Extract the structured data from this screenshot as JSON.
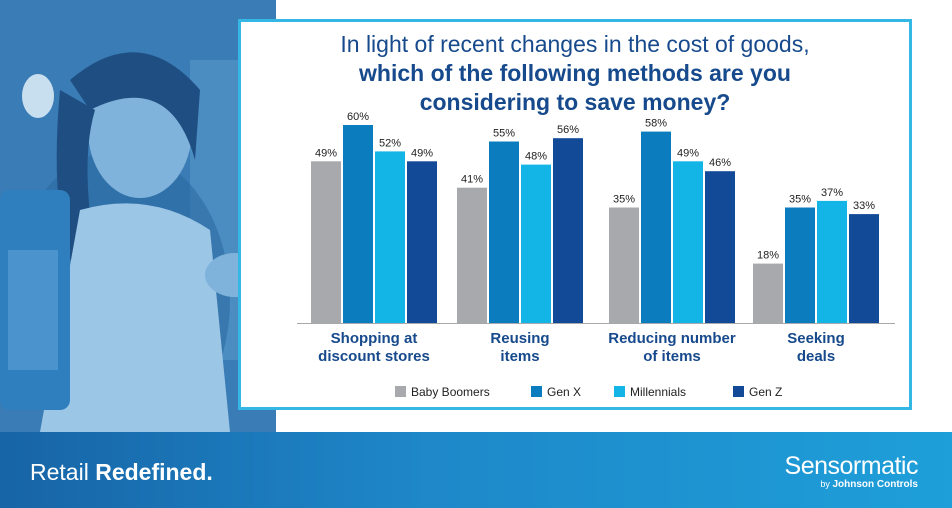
{
  "title": {
    "line1": "In light of recent changes in the cost of goods,",
    "line2": "which of the following methods are you",
    "line3": "considering to save money?"
  },
  "footer": {
    "tagline_regular": "Retail ",
    "tagline_bold": "Redefined.",
    "logo_main": "Sensormatic",
    "logo_by": "by ",
    "logo_company": "Johnson Controls"
  },
  "colors": {
    "title": "#174a8c",
    "frame": "#35b7e6",
    "footer": "#1e88c9"
  },
  "chart_data": {
    "type": "bar",
    "title": "In light of recent changes in the cost of goods, which of the following methods are you considering to save money?",
    "categories": [
      [
        "Shopping at",
        "discount stores"
      ],
      [
        "Reusing",
        "items"
      ],
      [
        "Reducing number",
        "of items"
      ],
      [
        "Seeking",
        "deals"
      ]
    ],
    "series": [
      {
        "name": "Baby Boomers",
        "color": "#a7a9ac",
        "values": [
          49,
          41,
          35,
          18
        ]
      },
      {
        "name": "Gen X",
        "color": "#0b7dbf",
        "values": [
          60,
          55,
          58,
          35
        ]
      },
      {
        "name": "Millennials",
        "color": "#12b5e6",
        "values": [
          52,
          48,
          49,
          37
        ]
      },
      {
        "name": "Gen Z",
        "color": "#124a98",
        "values": [
          49,
          56,
          46,
          33
        ]
      }
    ],
    "value_suffix": "%",
    "ylim": [
      0,
      60
    ],
    "grid": false,
    "legend_position": "bottom"
  }
}
